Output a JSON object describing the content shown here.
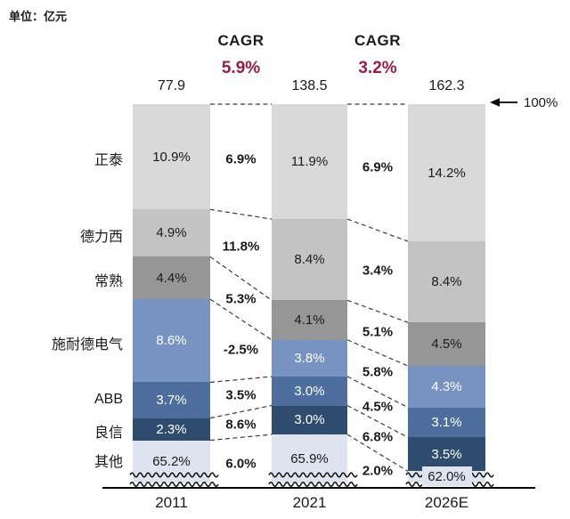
{
  "unit_label": "单位：亿元",
  "colors": {
    "cagr_value": "#9e1b47",
    "connector": "#3a3a3a",
    "axis": "#000000",
    "squiggle": "#111111"
  },
  "chart_data": {
    "type": "bar",
    "subtype": "stacked-100percent-with-axis-break",
    "title": "",
    "unit": "亿元",
    "categories": [
      "2011",
      "2021",
      "2026E"
    ],
    "totals": [
      "77.9",
      "138.5",
      "162.3"
    ],
    "top_marker": "100%",
    "axis_break": true,
    "legend_position": "left-of-first-bar",
    "series": [
      {
        "name": "正泰",
        "values": [
          10.9,
          11.9,
          14.2
        ],
        "color": "#d9d9d9",
        "label_color": "#1a1a1a"
      },
      {
        "name": "德力西",
        "values": [
          4.9,
          8.4,
          8.4
        ],
        "color": "#c3c3c3",
        "label_color": "#1a1a1a"
      },
      {
        "name": "常熟",
        "values": [
          4.4,
          4.1,
          4.5
        ],
        "color": "#969696",
        "label_color": "#1a1a1a"
      },
      {
        "name": "施耐德电气",
        "values": [
          8.6,
          3.8,
          4.3
        ],
        "color": "#7793c2",
        "label_color": "#ffffff"
      },
      {
        "name": "ABB",
        "values": [
          3.7,
          3.0,
          3.1
        ],
        "color": "#4e6f9e",
        "label_color": "#ffffff"
      },
      {
        "name": "良信",
        "values": [
          2.3,
          3.0,
          3.5
        ],
        "color": "#2e4d6e",
        "label_color": "#ffffff"
      },
      {
        "name": "其他",
        "values": [
          65.2,
          65.9,
          62.0
        ],
        "color": "#dde3ef",
        "label_color": "#1a1a1a"
      }
    ],
    "overall_cagr": [
      {
        "header": "CAGR",
        "value": "5.9%"
      },
      {
        "header": "CAGR",
        "value": "3.2%"
      }
    ],
    "segment_cagr": [
      [
        "6.9%",
        "11.8%",
        "5.3%",
        "-2.5%",
        "3.5%",
        "8.6%",
        "6.0%"
      ],
      [
        "6.9%",
        "3.4%",
        "5.1%",
        "5.8%",
        "4.5%",
        "6.8%",
        "2.0%"
      ]
    ]
  }
}
